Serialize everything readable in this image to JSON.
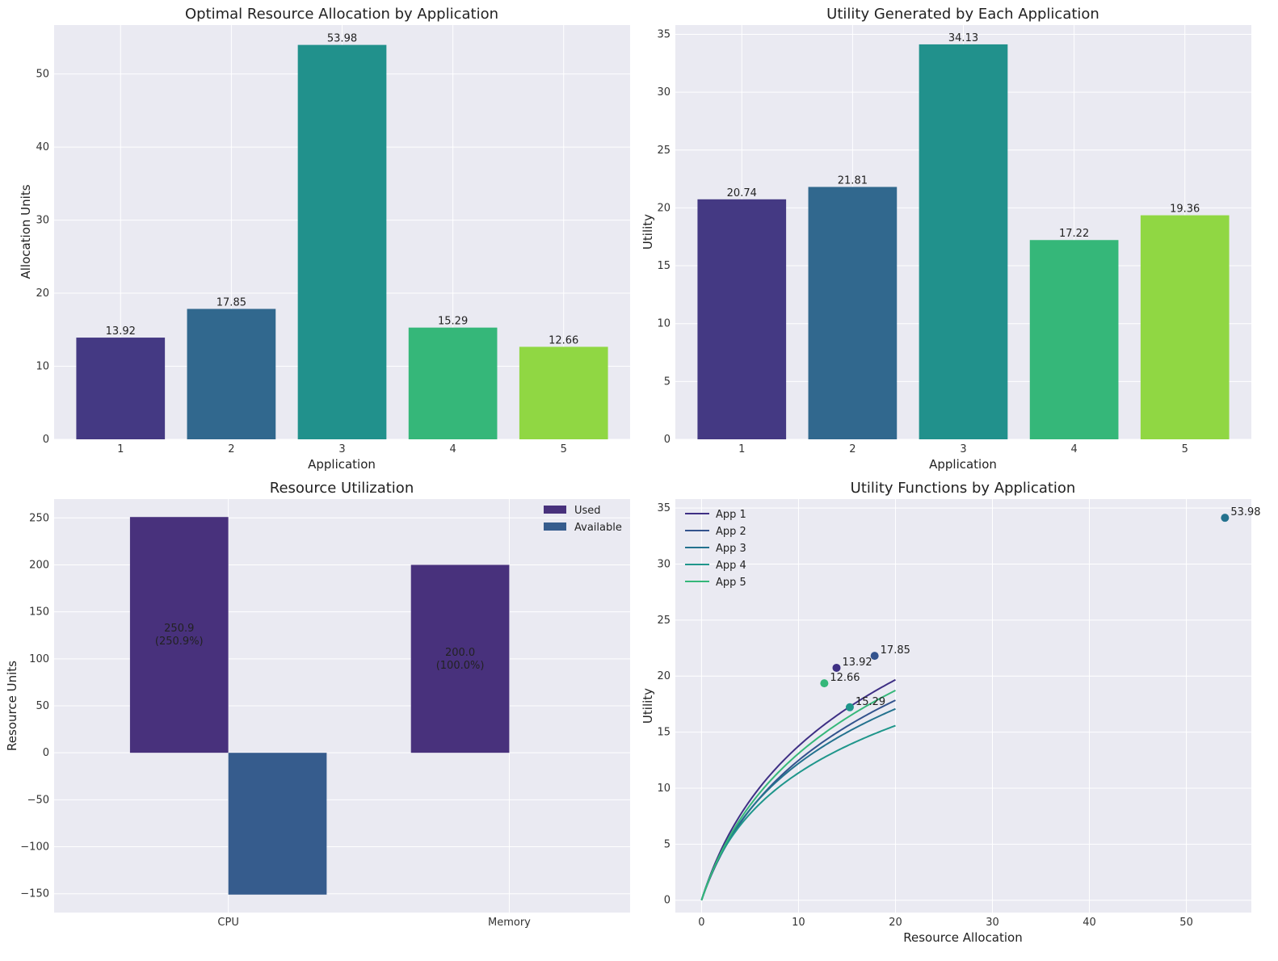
{
  "chart_data": [
    {
      "type": "bar",
      "title": "Optimal Resource Allocation by Application",
      "xlabel": "Application",
      "ylabel": "Allocation Units",
      "categories": [
        "1",
        "2",
        "3",
        "4",
        "5"
      ],
      "values": [
        13.92,
        17.85,
        53.98,
        15.29,
        12.66
      ],
      "value_labels": [
        "13.92",
        "17.85",
        "53.98",
        "15.29",
        "12.66"
      ],
      "colors": [
        "#443983",
        "#31688e",
        "#21918c",
        "#35b779",
        "#90d743"
      ],
      "ylim": [
        0,
        56.7
      ],
      "yticks": [
        0,
        10,
        20,
        30,
        40,
        50
      ],
      "grid": true
    },
    {
      "type": "bar",
      "title": "Utility Generated by Each Application",
      "xlabel": "Application",
      "ylabel": "Utility",
      "categories": [
        "1",
        "2",
        "3",
        "4",
        "5"
      ],
      "values": [
        20.74,
        21.81,
        34.13,
        17.22,
        19.36
      ],
      "value_labels": [
        "20.74",
        "21.81",
        "34.13",
        "17.22",
        "19.36"
      ],
      "colors": [
        "#443983",
        "#31688e",
        "#21918c",
        "#35b779",
        "#90d743"
      ],
      "ylim": [
        0,
        35.8
      ],
      "yticks": [
        0,
        5,
        10,
        15,
        20,
        25,
        30,
        35
      ],
      "grid": true
    },
    {
      "type": "bar",
      "title": "Resource Utilization",
      "xlabel": "",
      "ylabel": "Resource Units",
      "categories": [
        "CPU",
        "Memory"
      ],
      "series": [
        {
          "name": "Used",
          "values": [
            250.9,
            200.0
          ],
          "color": "#48317c"
        },
        {
          "name": "Available",
          "values": [
            -150.9,
            0.0
          ],
          "color": "#365c8d"
        }
      ],
      "bar_labels": [
        {
          "category": "CPU",
          "line1": "250.9",
          "line2": "(250.9%)"
        },
        {
          "category": "Memory",
          "line1": "200.0",
          "line2": "(100.0%)"
        }
      ],
      "ylim": [
        -170,
        270
      ],
      "yticks": [
        -150,
        -100,
        -50,
        0,
        50,
        100,
        150,
        200,
        250
      ],
      "ytick_labels": [
        "−150",
        "−100",
        "−50",
        "0",
        "50",
        "100",
        "150",
        "200",
        "250"
      ],
      "legend": "top-right",
      "grid": true
    },
    {
      "type": "line",
      "title": "Utility Functions by Application",
      "xlabel": "Resource Allocation",
      "ylabel": "Utility",
      "xlim": [
        -2.7,
        56.7
      ],
      "ylim": [
        -1.1,
        35.8
      ],
      "xticks": [
        0,
        10,
        20,
        30,
        40,
        50
      ],
      "yticks": [
        0,
        5,
        10,
        15,
        20,
        25,
        30,
        35
      ],
      "curve_x_max": 20,
      "series": [
        {
          "name": "App 1",
          "color": "#3e2f84",
          "scale": 10.98,
          "rate": 0.25,
          "point": [
            13.92,
            20.74
          ],
          "point_label": "13.92"
        },
        {
          "name": "App 2",
          "color": "#33538d",
          "scale": 9.96,
          "rate": 0.25,
          "point": [
            17.85,
            21.81
          ],
          "point_label": "17.85"
        },
        {
          "name": "App 3",
          "color": "#24728e",
          "scale": 8.65,
          "rate": 0.31,
          "point": [
            53.98,
            34.13
          ],
          "point_label": "53.98"
        },
        {
          "name": "App 4",
          "color": "#1f968b",
          "scale": 7.24,
          "rate": 0.38,
          "point": [
            15.29,
            17.22
          ],
          "point_label": "15.29"
        },
        {
          "name": "App 5",
          "color": "#35b779",
          "scale": 10.45,
          "rate": 0.25,
          "point": [
            12.66,
            19.36
          ],
          "point_label": "12.66"
        }
      ],
      "legend": "top-left",
      "grid": true
    }
  ]
}
